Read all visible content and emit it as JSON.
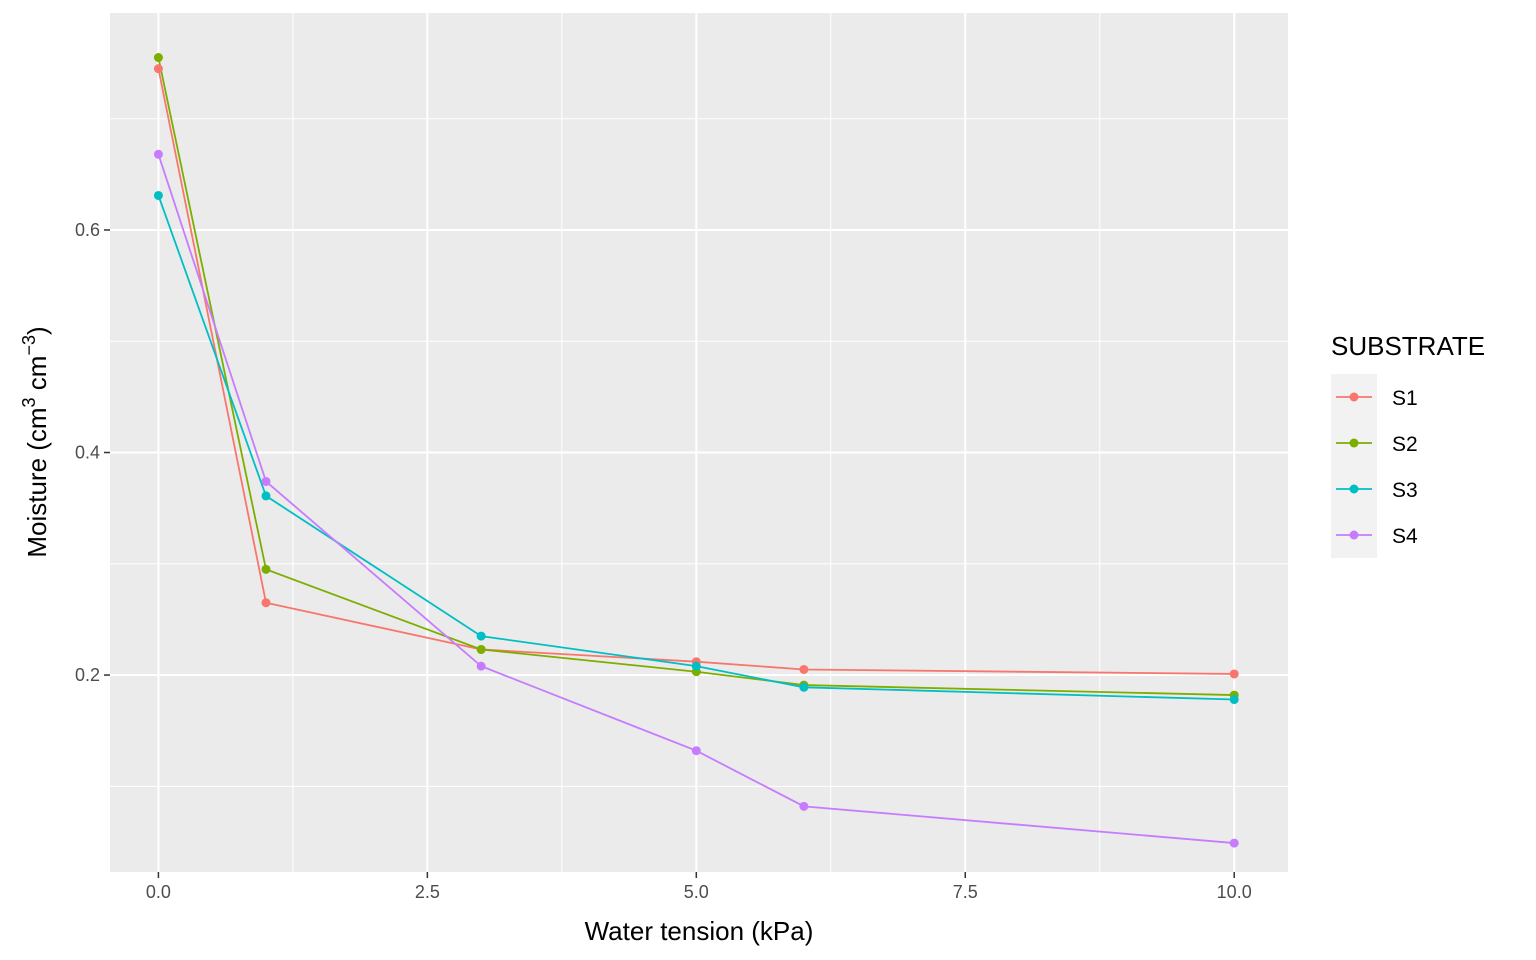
{
  "chart_data": {
    "type": "line",
    "xlabel": "Water tension (kPa)",
    "ylabel": {
      "main": "Moisture (cm",
      "sup1": "3",
      "mid": " cm",
      "sup2": "−3",
      "end": ")"
    },
    "x": [
      0,
      1,
      3,
      5,
      6,
      10
    ],
    "xlim": [
      -0.45,
      10.5
    ],
    "ylim": [
      0.023,
      0.795
    ],
    "xticks": [
      {
        "value": 0,
        "label": "0.0"
      },
      {
        "value": 2.5,
        "label": "2.5"
      },
      {
        "value": 5,
        "label": "5.0"
      },
      {
        "value": 7.5,
        "label": "7.5"
      },
      {
        "value": 10,
        "label": "10.0"
      }
    ],
    "yticks": [
      {
        "value": 0.2,
        "label": "0.2"
      },
      {
        "value": 0.4,
        "label": "0.4"
      },
      {
        "value": 0.6,
        "label": "0.6"
      }
    ],
    "x_minor": [
      1.25,
      3.75,
      6.25,
      8.75
    ],
    "y_minor": [
      0.1,
      0.3,
      0.5,
      0.7
    ],
    "grid": true,
    "legend": {
      "title": "SUBSTRATE",
      "position": "right"
    },
    "series": [
      {
        "name": "S1",
        "color": "#F8766D",
        "values": [
          0.745,
          0.265,
          0.223,
          0.212,
          0.205,
          0.201
        ]
      },
      {
        "name": "S2",
        "color": "#7CAE00",
        "values": [
          0.755,
          0.295,
          0.223,
          0.203,
          0.191,
          0.182
        ]
      },
      {
        "name": "S3",
        "color": "#00BFC4",
        "values": [
          0.631,
          0.361,
          0.235,
          0.208,
          0.189,
          0.178
        ]
      },
      {
        "name": "S4",
        "color": "#C77CFF",
        "values": [
          0.668,
          0.374,
          0.208,
          0.132,
          0.082,
          0.049
        ]
      }
    ]
  }
}
